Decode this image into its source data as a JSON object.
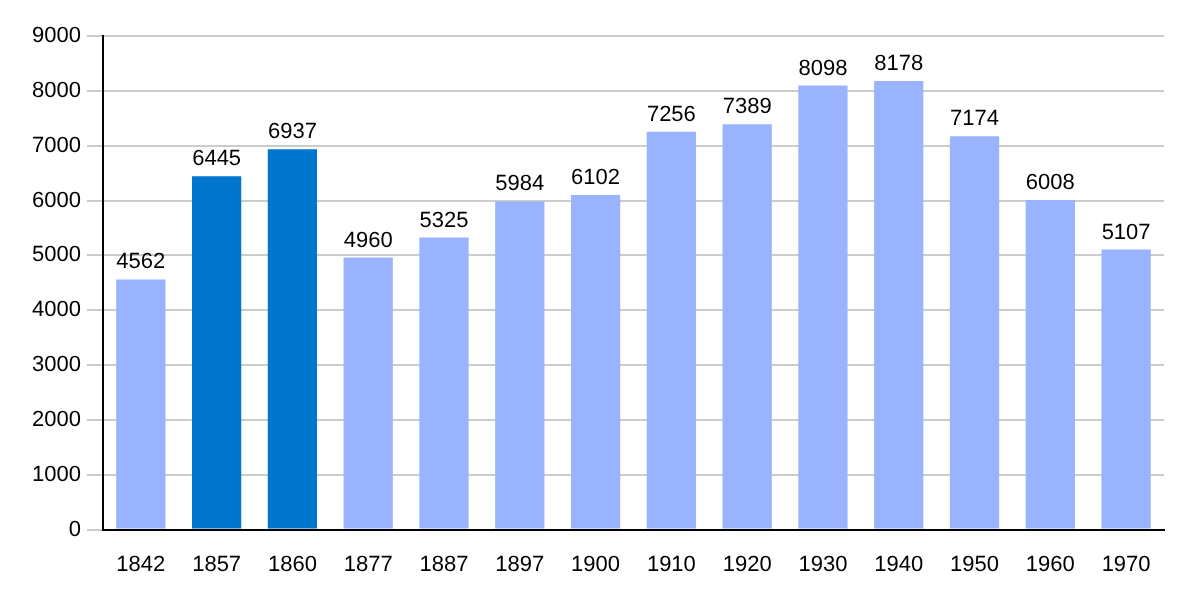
{
  "chart_data": {
    "type": "bar",
    "categories": [
      "1842",
      "1857",
      "1860",
      "1877",
      "1887",
      "1897",
      "1900",
      "1910",
      "1920",
      "1930",
      "1940",
      "1950",
      "1960",
      "1970"
    ],
    "values": [
      4562,
      6445,
      6937,
      4960,
      5325,
      5984,
      6102,
      7256,
      7389,
      8098,
      8178,
      7174,
      6008,
      5107
    ],
    "colors": [
      "#99b3ff",
      "#0077cc",
      "#0077cc",
      "#99b3ff",
      "#99b3ff",
      "#99b3ff",
      "#99b3ff",
      "#99b3ff",
      "#99b3ff",
      "#99b3ff",
      "#99b3ff",
      "#99b3ff",
      "#99b3ff",
      "#99b3ff"
    ],
    "ylim": [
      0,
      9000
    ],
    "yticks": [
      0,
      1000,
      2000,
      3000,
      4000,
      5000,
      6000,
      7000,
      8000,
      9000
    ],
    "grid": "y",
    "data_labels": true
  }
}
